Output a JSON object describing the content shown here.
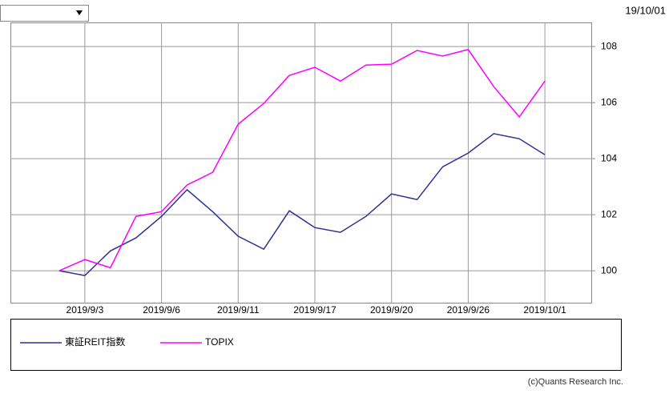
{
  "date_label": "19/10/01",
  "chart_data": {
    "type": "line",
    "categories": [
      null,
      "2019/9/3",
      null,
      null,
      "2019/9/6",
      null,
      null,
      "2019/9/11",
      null,
      null,
      "2019/9/17",
      null,
      null,
      "2019/9/20",
      null,
      null,
      "2019/9/26",
      null,
      null,
      "2019/10/1"
    ],
    "series": [
      {
        "name": "東証REIT指数",
        "color": "#2e3192",
        "values": [
          100,
          99.83,
          100.71,
          101.17,
          101.94,
          102.89,
          102.11,
          101.23,
          100.77,
          102.14,
          101.54,
          101.37,
          101.94,
          102.74,
          102.54,
          103.71,
          104.2,
          104.89,
          104.71,
          104.14
        ]
      },
      {
        "name": "TOPIX",
        "color": "#ff00ff",
        "values": [
          100,
          100.4,
          100.11,
          101.94,
          102.11,
          103.06,
          103.51,
          105.23,
          105.97,
          106.97,
          107.26,
          106.77,
          107.34,
          107.37,
          107.86,
          107.66,
          107.89,
          106.57,
          105.49,
          106.77
        ]
      }
    ],
    "ylim": [
      98.86,
      108.86
    ],
    "yticks": [
      100,
      102,
      104,
      106,
      108
    ],
    "grid": true,
    "y_axis_side": "right",
    "legend": "bottom"
  },
  "copyright": "(c)Quants Research Inc."
}
